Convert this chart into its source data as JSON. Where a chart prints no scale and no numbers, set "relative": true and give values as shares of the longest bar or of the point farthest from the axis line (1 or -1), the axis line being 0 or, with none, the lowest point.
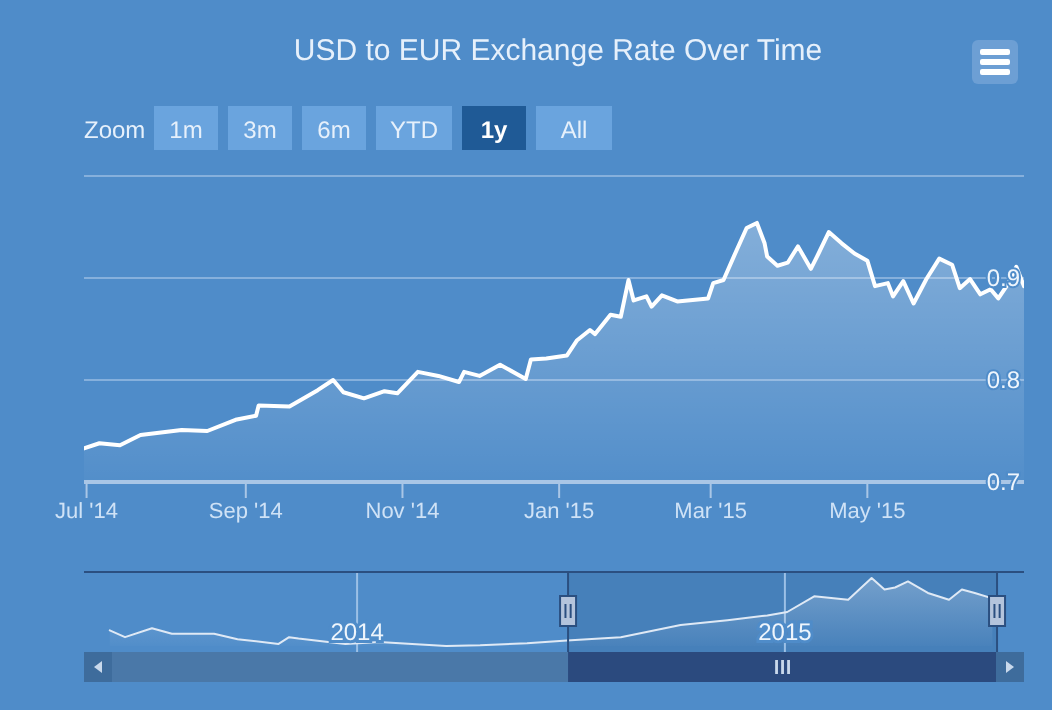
{
  "chart_data": [
    {
      "type": "area",
      "title": "USD to EUR Exchange Rate Over Time",
      "annotations": [
        "Zoom",
        "1m",
        "3m",
        "6m",
        "YTD",
        "1y",
        "All"
      ],
      "grid": "y",
      "xlim": [
        "2014-06-30",
        "2015-07-01"
      ],
      "xticks": [
        {
          "value": "2014-07-01",
          "label": "Jul '14"
        },
        {
          "value": "2014-09-01",
          "label": "Sep '14"
        },
        {
          "value": "2014-11-01",
          "label": "Nov '14"
        },
        {
          "value": "2015-01-01",
          "label": "Jan '15"
        },
        {
          "value": "2015-03-01",
          "label": "Mar '15"
        },
        {
          "value": "2015-05-01",
          "label": "May '15"
        }
      ],
      "ylim": [
        0.7,
        1.0
      ],
      "yticks": [
        0.7,
        0.8,
        0.9,
        {
          "value": 1.0,
          "label": null
        }
      ],
      "series": [
        {
          "color": "#ffffff",
          "x": [
            "2014-06-30",
            "2014-07-06",
            "2014-07-14",
            "2014-07-22",
            "2014-08-07",
            "2014-08-17",
            "2014-08-28",
            "2014-09-05",
            "2014-09-06",
            "2014-09-18",
            "2014-09-29",
            "2014-10-05",
            "2014-10-09",
            "2014-10-17",
            "2014-10-25",
            "2014-10-30",
            "2014-11-07",
            "2014-11-15",
            "2014-11-23",
            "2014-11-25",
            "2014-12-01",
            "2014-12-09",
            "2014-12-19",
            "2014-12-21",
            "2014-12-27",
            "2015-01-04",
            "2015-01-08",
            "2015-01-13",
            "2015-01-15",
            "2015-01-21",
            "2015-01-25",
            "2015-01-28",
            "2015-01-30",
            "2015-02-04",
            "2015-02-06",
            "2015-02-10",
            "2015-02-16",
            "2015-02-28",
            "2015-03-02",
            "2015-03-06",
            "2015-03-10",
            "2015-03-15",
            "2015-03-19",
            "2015-03-22",
            "2015-03-23",
            "2015-03-27",
            "2015-03-31",
            "2015-04-04",
            "2015-04-09",
            "2015-04-12",
            "2015-04-16",
            "2015-04-21",
            "2015-04-26",
            "2015-05-01",
            "2015-05-04",
            "2015-05-09",
            "2015-05-11",
            "2015-05-15",
            "2015-05-19",
            "2015-05-24",
            "2015-05-29",
            "2015-06-03",
            "2015-06-06",
            "2015-06-10",
            "2015-06-14",
            "2015-06-18",
            "2015-06-21",
            "2015-06-25",
            "2015-06-28",
            "2015-07-01"
          ],
          "values": [
            0.733,
            0.738,
            0.736,
            0.746,
            0.751,
            0.75,
            0.761,
            0.765,
            0.775,
            0.774,
            0.79,
            0.8,
            0.788,
            0.782,
            0.789,
            0.787,
            0.808,
            0.804,
            0.798,
            0.808,
            0.804,
            0.815,
            0.801,
            0.82,
            0.821,
            0.824,
            0.839,
            0.849,
            0.845,
            0.864,
            0.862,
            0.898,
            0.878,
            0.882,
            0.872,
            0.883,
            0.877,
            0.88,
            0.895,
            0.898,
            0.921,
            0.949,
            0.954,
            0.934,
            0.921,
            0.912,
            0.915,
            0.931,
            0.909,
            0.924,
            0.945,
            0.934,
            0.924,
            0.917,
            0.892,
            0.895,
            0.882,
            0.897,
            0.875,
            0.899,
            0.919,
            0.913,
            0.89,
            0.899,
            0.884,
            0.889,
            0.88,
            0.895,
            0.911,
            0.892
          ]
        }
      ]
    },
    {
      "type": "area",
      "relative": true,
      "grid": "x",
      "xlim": [
        "2013-05-13",
        "2015-07-24"
      ],
      "xticks": [
        {
          "value": "2014-01-01",
          "label": "2014"
        },
        {
          "value": "2015-01-01",
          "label": "2015"
        }
      ],
      "series": [
        {
          "color": "#dfe9f5",
          "x": [
            "2013-06-04",
            "2013-06-17",
            "2013-07-10",
            "2013-07-27",
            "2013-09-01",
            "2013-09-21",
            "2013-10-26",
            "2013-11-04",
            "2013-11-12",
            "2013-12-22",
            "2014-01-20",
            "2014-02-17",
            "2014-03-18",
            "2014-04-16",
            "2014-05-26",
            "2014-06-29",
            "2014-08-14",
            "2014-10-04",
            "2014-11-13",
            "2014-12-17",
            "2015-01-03",
            "2015-01-26",
            "2015-02-24",
            "2015-03-16",
            "2015-03-27",
            "2015-04-05",
            "2015-04-16",
            "2015-05-03",
            "2015-05-21",
            "2015-06-01",
            "2015-06-12",
            "2015-06-27"
          ],
          "values": [
            0.23,
            0.13,
            0.26,
            0.18,
            0.18,
            0.1,
            0.03,
            0.13,
            0.11,
            0.03,
            0.06,
            0.03,
            0,
            0.01,
            0.04,
            0.08,
            0.13,
            0.31,
            0.38,
            0.45,
            0.5,
            0.73,
            0.68,
            1,
            0.83,
            0.86,
            0.95,
            0.78,
            0.68,
            0.83,
            0.78,
            0.7
          ]
        }
      ]
    }
  ]
}
